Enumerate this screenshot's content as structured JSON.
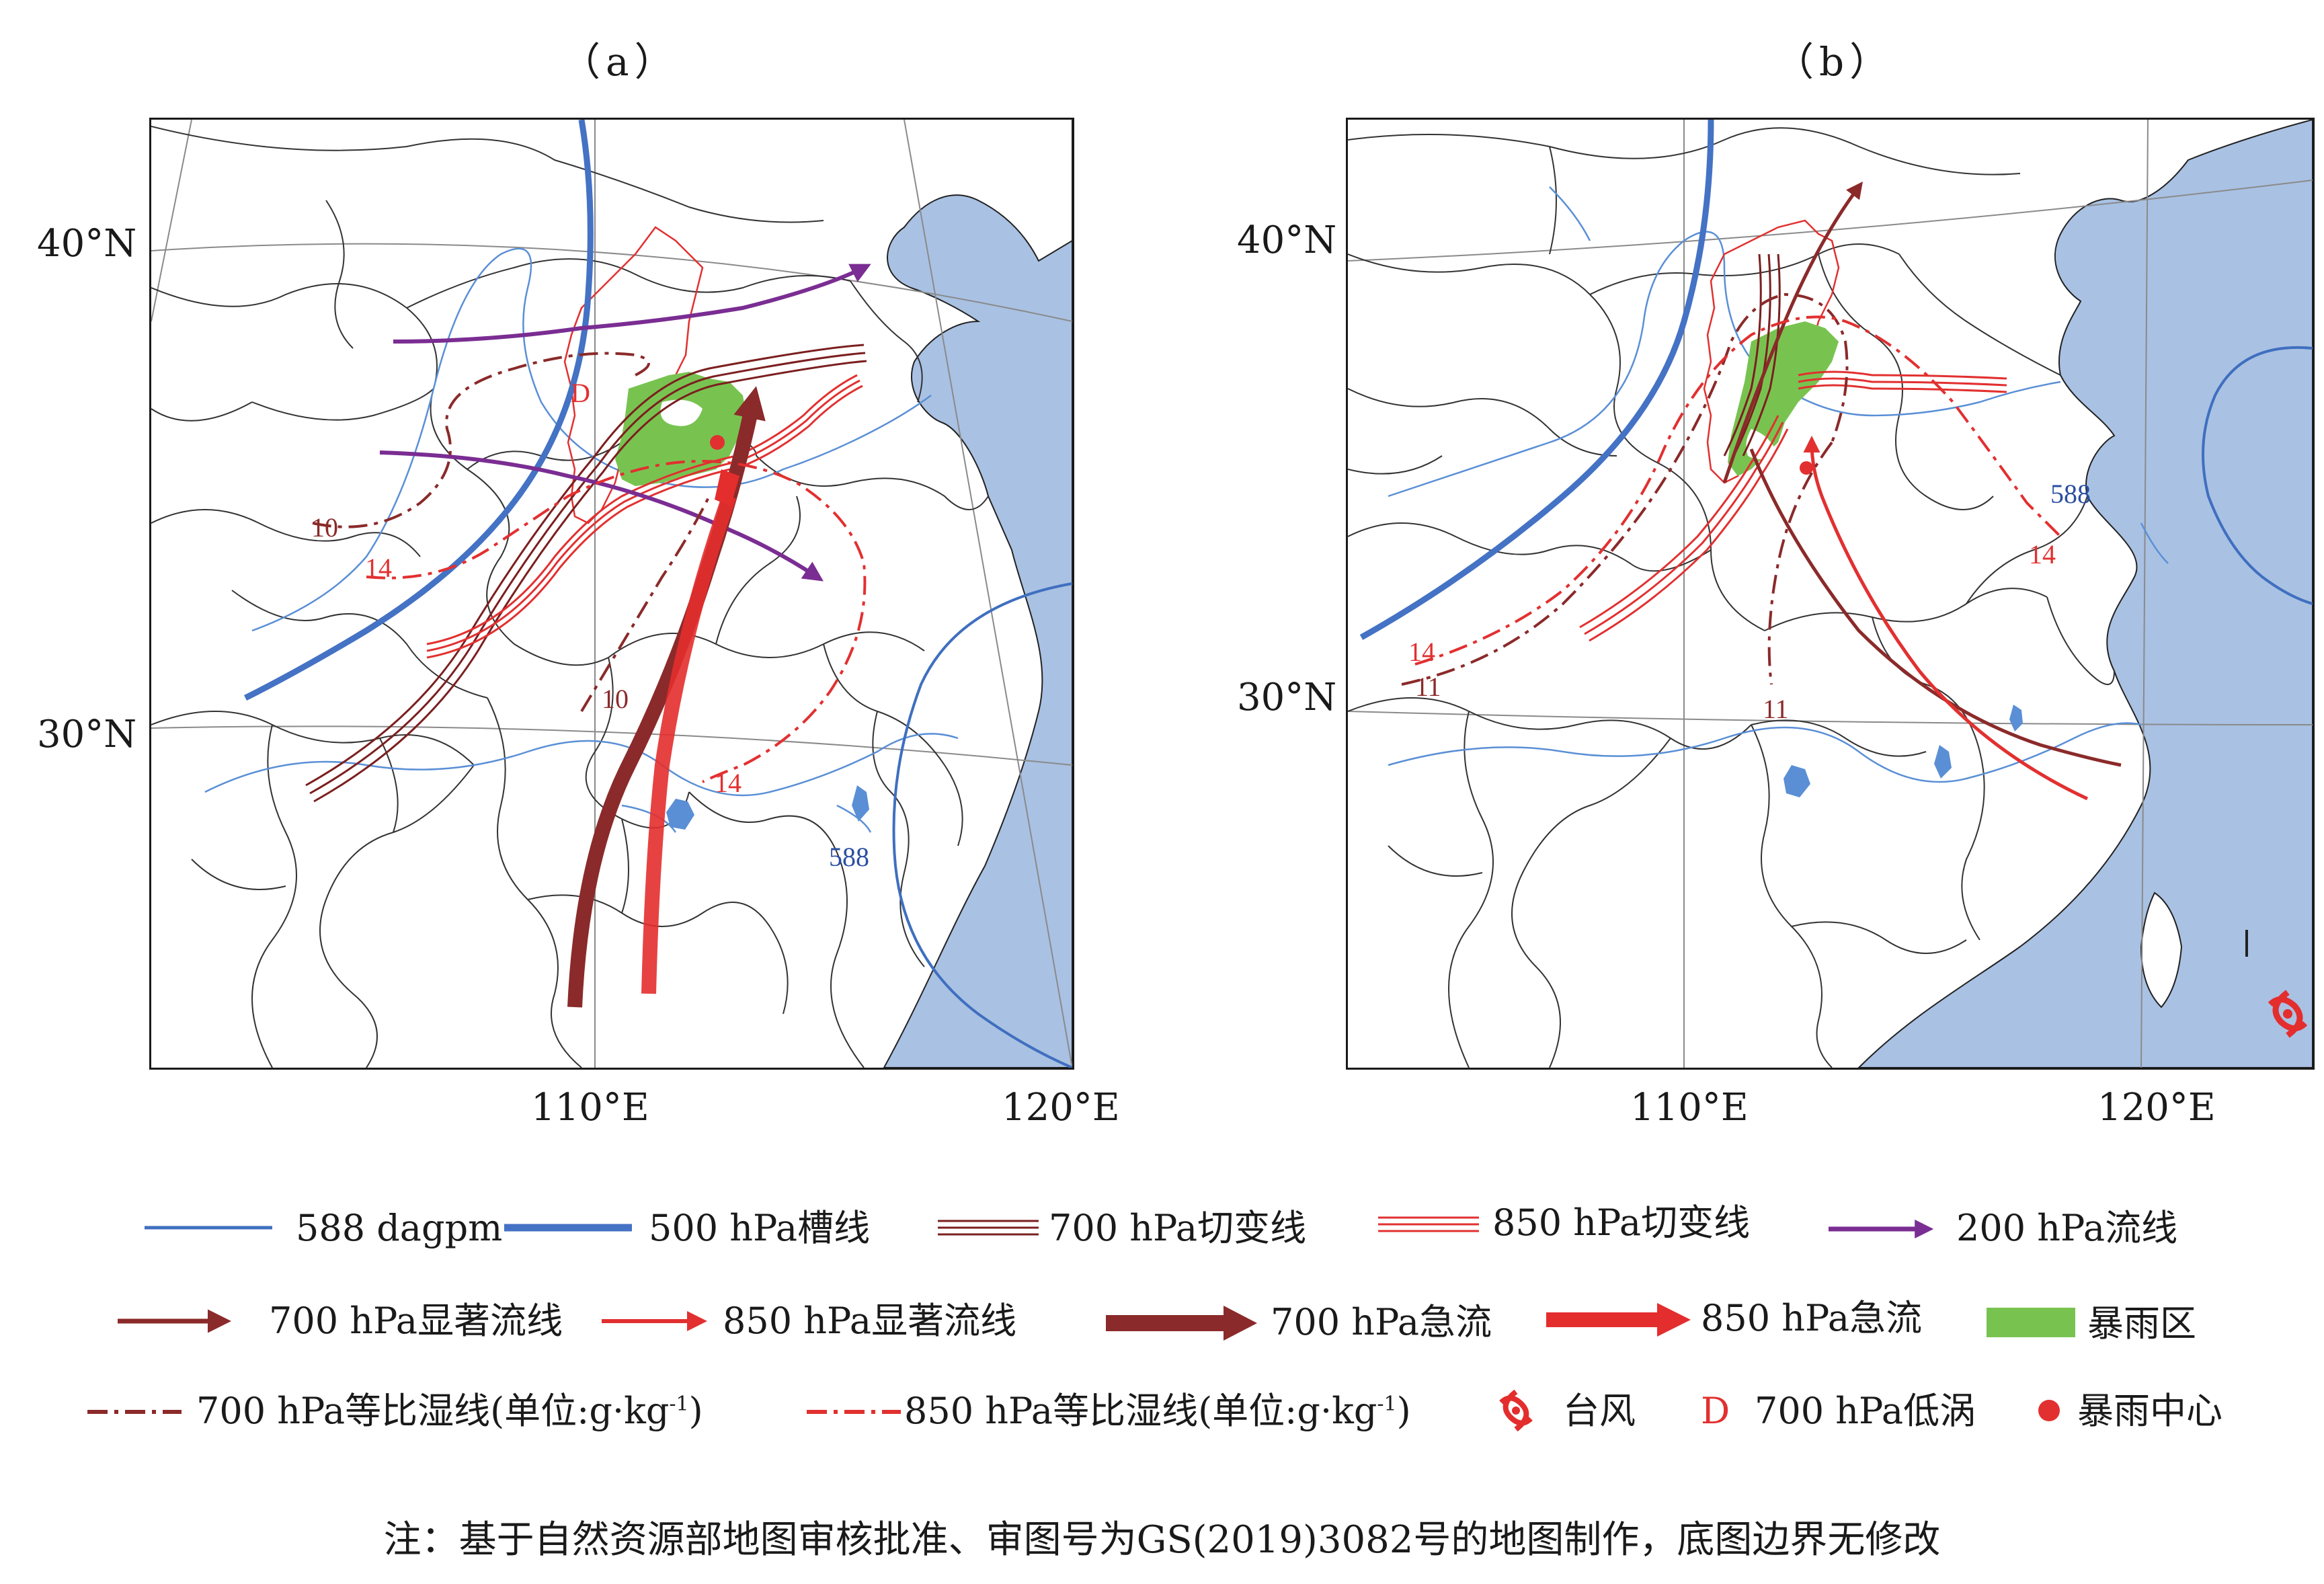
{
  "panels": [
    {
      "id": "a",
      "label": "（a）"
    },
    {
      "id": "b",
      "label": "（b）"
    }
  ],
  "panel_a": {
    "lat_labels": [
      "40°N",
      "30°N"
    ],
    "lon_labels": [
      "110°E",
      "120°E"
    ],
    "labels": {
      "h588": "588",
      "q700_10_west": "10",
      "q700_10_south": "10",
      "q850_14_west": "14",
      "q850_14_south": "14",
      "low_d": "D"
    }
  },
  "panel_b": {
    "lat_labels": [
      "40°N",
      "30°N"
    ],
    "lon_labels": [
      "110°E",
      "120°E"
    ],
    "labels": {
      "h588": "588",
      "q850_14_west": "14",
      "q700_11_west": "11",
      "q700_11_south": "11",
      "q850_14_east": "14"
    }
  },
  "legend": {
    "row1": [
      {
        "key": "h588",
        "label": "588 dagpm"
      },
      {
        "key": "trough500",
        "label": "500 hPa槽线"
      },
      {
        "key": "shear700",
        "label": "700 hPa切变线"
      },
      {
        "key": "shear850",
        "label": "850 hPa切变线"
      },
      {
        "key": "stream200",
        "label": "200 hPa流线"
      }
    ],
    "row2": [
      {
        "key": "sig700",
        "label": "700 hPa显著流线"
      },
      {
        "key": "sig850",
        "label": "850 hPa显著流线"
      },
      {
        "key": "jet700",
        "label": "700 hPa急流"
      },
      {
        "key": "jet850",
        "label": "850 hPa急流"
      },
      {
        "key": "rain",
        "label": "暴雨区"
      }
    ],
    "row3": [
      {
        "key": "q700",
        "label": "700 hPa等比湿线(单位:g·kg",
        "sup": "-1",
        "tail": ")"
      },
      {
        "key": "q850",
        "label": "850 hPa等比湿线(单位:g·kg",
        "sup": "-1",
        "tail": ")"
      },
      {
        "key": "typhoon",
        "label": "台风"
      },
      {
        "key": "low700",
        "symbol": "D",
        "label": "700 hPa低涡"
      },
      {
        "key": "center",
        "label": "暴雨中心"
      }
    ]
  },
  "colors": {
    "h588": "#3f6fbf",
    "trough500": "#4472c4",
    "shear700": "#7b1f1f",
    "shear850": "#e23030",
    "stream200": "#7a2d92",
    "jet700": "#8b2a2a",
    "jet850": "#e42d2d",
    "rain": "#78c350",
    "sea": "#a9c1e3",
    "river": "#5a8fd6"
  },
  "note": "注：基于自然资源部地图审核批准、审图号为GS(2019)3082号的地图制作，底图边界无修改"
}
